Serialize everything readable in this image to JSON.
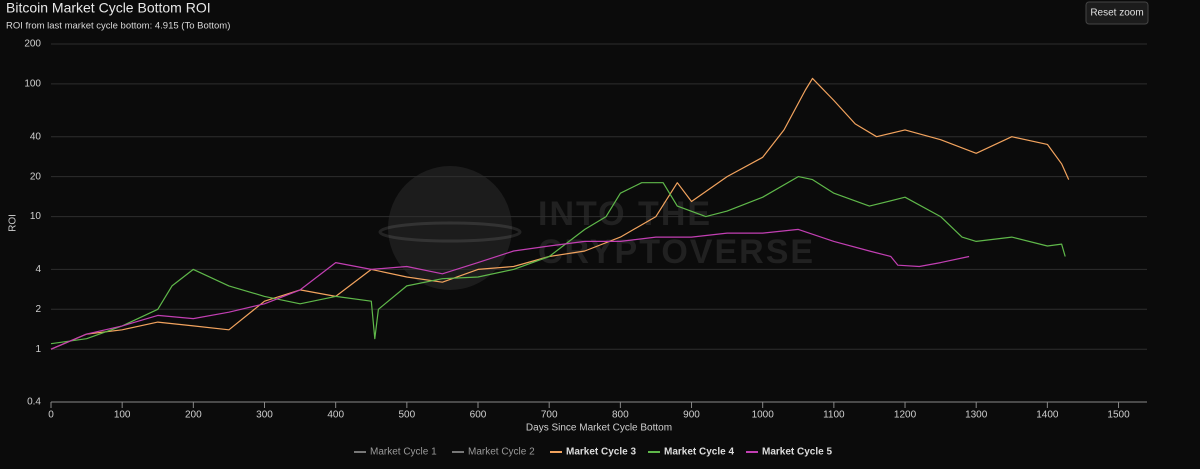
{
  "chart_data": {
    "type": "line",
    "title": "Bitcoin Market Cycle Bottom ROI",
    "subtitle": "ROI from last market cycle bottom: 4.915 (To Bottom)",
    "x_label": "Days Since Market Cycle Bottom",
    "y_label": "ROI",
    "log_scale_y": true,
    "grid": true,
    "legend": "bottom",
    "xlim": [
      0,
      1540
    ],
    "xticks": [
      0,
      100,
      200,
      300,
      400,
      500,
      600,
      700,
      800,
      900,
      1000,
      1100,
      1200,
      1300,
      1400,
      1500
    ],
    "ylim": [
      0.4,
      200
    ],
    "yticks": [
      0.4,
      1,
      2,
      4,
      10,
      20,
      40,
      100,
      200
    ],
    "series": [
      {
        "name": "Market Cycle 1",
        "color": "#cccccc",
        "visible": false
      },
      {
        "name": "Market Cycle 2",
        "color": "#f3d09a",
        "visible": false
      },
      {
        "name": "Market Cycle 3",
        "color": "#f2a35e",
        "visible": true,
        "x": [
          0,
          50,
          100,
          150,
          200,
          250,
          300,
          350,
          400,
          450,
          500,
          550,
          600,
          650,
          700,
          750,
          800,
          850,
          880,
          900,
          950,
          1000,
          1030,
          1060,
          1070,
          1100,
          1130,
          1160,
          1200,
          1250,
          1300,
          1350,
          1400,
          1420,
          1430
        ],
        "values": [
          1,
          1.3,
          1.4,
          1.6,
          1.5,
          1.4,
          2.3,
          2.8,
          2.5,
          4,
          3.5,
          3.2,
          4,
          4.2,
          5,
          5.5,
          7,
          10,
          18,
          13,
          20,
          28,
          45,
          90,
          110,
          75,
          50,
          40,
          45,
          38,
          30,
          40,
          35,
          25,
          19
        ]
      },
      {
        "name": "Market Cycle 4",
        "color": "#5fb84a",
        "visible": true,
        "x": [
          0,
          50,
          100,
          150,
          170,
          200,
          250,
          300,
          350,
          400,
          450,
          455,
          460,
          500,
          550,
          600,
          650,
          700,
          750,
          780,
          800,
          830,
          860,
          880,
          920,
          950,
          1000,
          1050,
          1070,
          1100,
          1150,
          1200,
          1250,
          1280,
          1300,
          1350,
          1400,
          1420,
          1425
        ],
        "values": [
          1.1,
          1.2,
          1.5,
          2,
          3,
          4,
          3,
          2.5,
          2.2,
          2.5,
          2.3,
          1.2,
          2,
          3,
          3.4,
          3.5,
          4,
          5,
          8,
          10,
          15,
          18,
          18,
          12,
          10,
          11,
          14,
          20,
          19,
          15,
          12,
          14,
          10,
          7,
          6.5,
          7,
          6,
          6.2,
          5
        ]
      },
      {
        "name": "Market Cycle 5",
        "color": "#c23fb3",
        "visible": true,
        "x": [
          0,
          50,
          100,
          150,
          200,
          250,
          300,
          350,
          400,
          450,
          500,
          550,
          600,
          650,
          700,
          750,
          800,
          850,
          900,
          950,
          1000,
          1050,
          1100,
          1150,
          1180,
          1190,
          1220,
          1250,
          1290
        ],
        "values": [
          1,
          1.3,
          1.5,
          1.8,
          1.7,
          1.9,
          2.2,
          2.8,
          4.5,
          4,
          4.2,
          3.7,
          4.5,
          5.5,
          6,
          6.5,
          6.5,
          7,
          7,
          7.5,
          7.5,
          8,
          6.5,
          5.5,
          5,
          4.3,
          4.2,
          4.5,
          5
        ]
      }
    ]
  },
  "ui": {
    "reset_button": "Reset zoom"
  },
  "watermark": {
    "line1": "INTO THE",
    "line2": "CRYPTOVERSE"
  }
}
